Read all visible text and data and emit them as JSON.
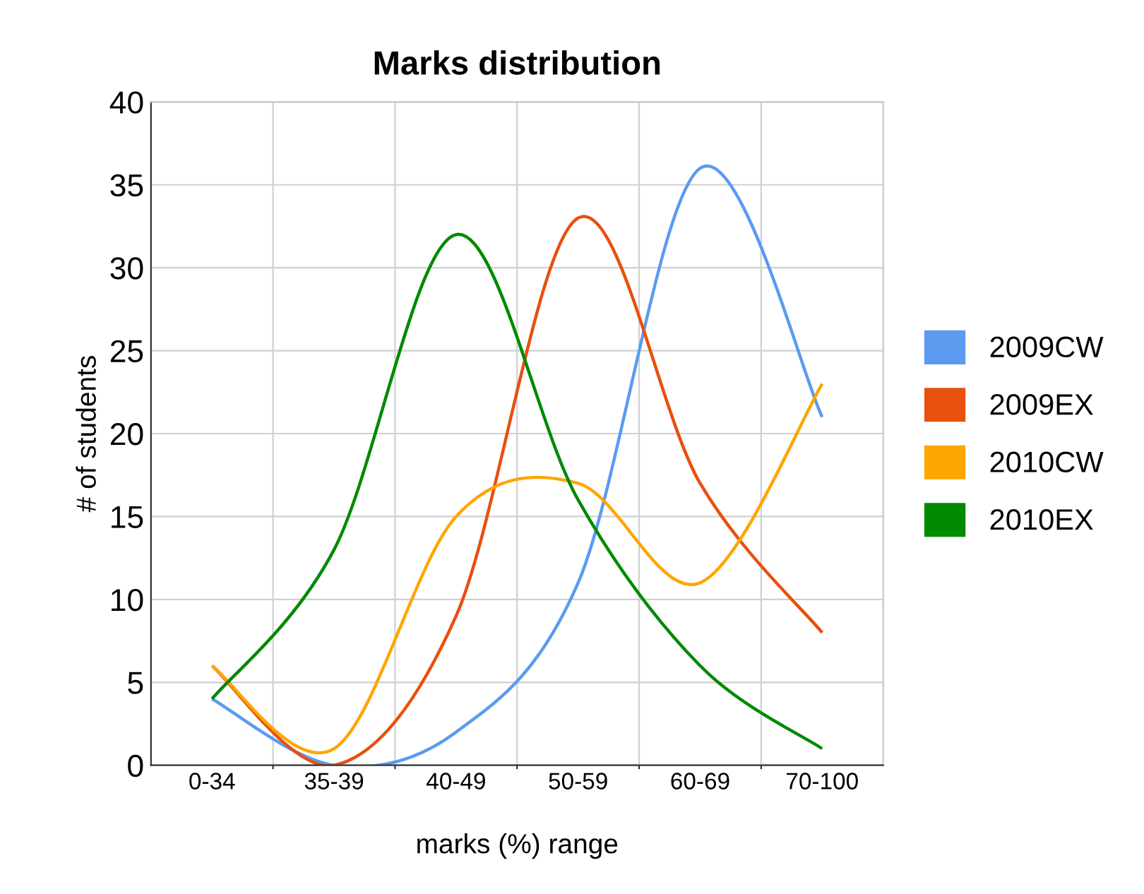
{
  "chart_data": {
    "type": "line",
    "title": "Marks distribution",
    "xlabel": "marks (%) range",
    "ylabel": "# of students",
    "categories": [
      "0-34",
      "35-39",
      "40-49",
      "50-59",
      "60-69",
      "70-100"
    ],
    "series": [
      {
        "name": "2009CW",
        "color": "#5a9bf0",
        "values": [
          4,
          0,
          2,
          11,
          36,
          21
        ]
      },
      {
        "name": "2009EX",
        "color": "#e8500e",
        "values": [
          6,
          0,
          9,
          33,
          17,
          8
        ]
      },
      {
        "name": "2010CW",
        "color": "#ffa500",
        "values": [
          6,
          1,
          15,
          17,
          11,
          23
        ]
      },
      {
        "name": "2010EX",
        "color": "#008a00",
        "values": [
          4,
          13,
          32,
          16,
          6,
          1
        ]
      }
    ],
    "ylim": [
      0,
      40
    ],
    "yticks": [
      0,
      5,
      10,
      15,
      20,
      25,
      30,
      35,
      40
    ],
    "grid": true,
    "legend": "right",
    "marker": "none",
    "line_style": "solid"
  }
}
